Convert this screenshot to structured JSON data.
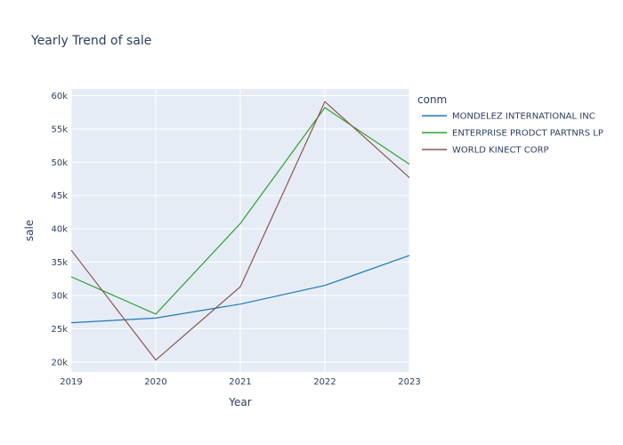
{
  "chart_data": {
    "type": "line",
    "title": "Yearly Trend of sale",
    "xlabel": "Year",
    "ylabel": "sale",
    "x": [
      "2019",
      "2020",
      "2021",
      "2022",
      "2023"
    ],
    "xlim": [
      2019,
      2023
    ],
    "ylim": [
      18500,
      61000
    ],
    "yticks": [
      20000,
      25000,
      30000,
      35000,
      40000,
      45000,
      50000,
      55000,
      60000
    ],
    "ytick_labels": [
      "20k",
      "25k",
      "30k",
      "35k",
      "40k",
      "45k",
      "50k",
      "55k",
      "60k"
    ],
    "grid": true,
    "plot_background": "#E5ECF6",
    "legend": {
      "title": "conm",
      "placement": "right"
    },
    "series": [
      {
        "name": "MONDELEZ INTERNATIONAL INC",
        "color": "#1f77b4",
        "values": [
          25900,
          26600,
          28700,
          31500,
          36000
        ]
      },
      {
        "name": "ENTERPRISE PRODCT PARTNRS LP",
        "color": "#2ca02c",
        "values": [
          32800,
          27200,
          40800,
          58200,
          49700
        ]
      },
      {
        "name": "WORLD KINECT CORP",
        "color": "#8c564b",
        "values": [
          36800,
          20300,
          31300,
          59100,
          47700
        ]
      }
    ]
  }
}
